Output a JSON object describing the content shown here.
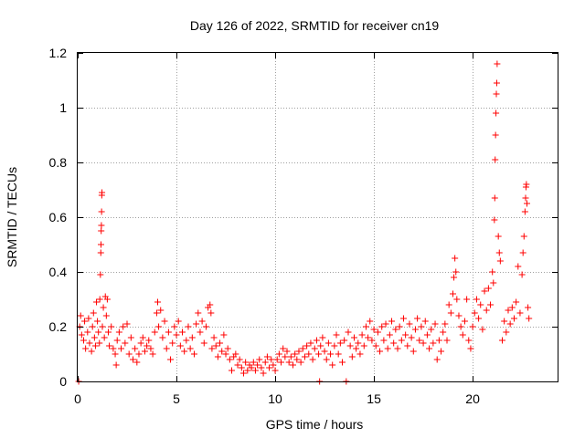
{
  "chart_data": {
    "type": "scatter",
    "title": "Day 126 of 2022, SRMTID for receiver cn19",
    "xlabel": "GPS time / hours",
    "ylabel": "SRMTID / TECUs",
    "xlim": [
      0,
      24.3
    ],
    "ylim": [
      0,
      1.2
    ],
    "xticks": [
      0,
      5,
      10,
      15,
      20
    ],
    "xtick_labels": [
      "0",
      "5",
      "10",
      "15",
      "20"
    ],
    "yticks": [
      0,
      0.2,
      0.4,
      0.6,
      0.8,
      1.0,
      1.2
    ],
    "ytick_labels": [
      "0",
      "0.2",
      "0.4",
      "0.6",
      "0.8",
      "1",
      "1.2"
    ],
    "grid": true,
    "marker": "+",
    "color": "#ff0000",
    "series": [
      {
        "name": "cn19",
        "points": [
          [
            0.05,
            0.0
          ],
          [
            0.1,
            0.2
          ],
          [
            0.15,
            0.24
          ],
          [
            0.2,
            0.17
          ],
          [
            0.3,
            0.15
          ],
          [
            0.35,
            0.22
          ],
          [
            0.4,
            0.12
          ],
          [
            0.5,
            0.18
          ],
          [
            0.55,
            0.23
          ],
          [
            0.6,
            0.14
          ],
          [
            0.7,
            0.11
          ],
          [
            0.75,
            0.2
          ],
          [
            0.8,
            0.25
          ],
          [
            0.85,
            0.16
          ],
          [
            0.9,
            0.13
          ],
          [
            0.95,
            0.29
          ],
          [
            1.0,
            0.22
          ],
          [
            1.05,
            0.18
          ],
          [
            1.1,
            0.14
          ],
          [
            1.12,
            0.3
          ],
          [
            1.15,
            0.39
          ],
          [
            1.17,
            0.47
          ],
          [
            1.18,
            0.5
          ],
          [
            1.19,
            0.55
          ],
          [
            1.2,
            0.57
          ],
          [
            1.21,
            0.62
          ],
          [
            1.22,
            0.68
          ],
          [
            1.23,
            0.69
          ],
          [
            1.25,
            0.2
          ],
          [
            1.3,
            0.27
          ],
          [
            1.35,
            0.16
          ],
          [
            1.4,
            0.31
          ],
          [
            1.45,
            0.24
          ],
          [
            1.5,
            0.3
          ],
          [
            1.55,
            0.18
          ],
          [
            1.6,
            0.13
          ],
          [
            1.7,
            0.2
          ],
          [
            1.8,
            0.12
          ],
          [
            1.9,
            0.1
          ],
          [
            1.95,
            0.06
          ],
          [
            2.0,
            0.15
          ],
          [
            2.1,
            0.18
          ],
          [
            2.2,
            0.12
          ],
          [
            2.3,
            0.2
          ],
          [
            2.4,
            0.14
          ],
          [
            2.5,
            0.21
          ],
          [
            2.6,
            0.1
          ],
          [
            2.7,
            0.16
          ],
          [
            2.8,
            0.08
          ],
          [
            2.9,
            0.12
          ],
          [
            3.0,
            0.07
          ],
          [
            3.1,
            0.1
          ],
          [
            3.2,
            0.14
          ],
          [
            3.3,
            0.16
          ],
          [
            3.4,
            0.11
          ],
          [
            3.5,
            0.13
          ],
          [
            3.6,
            0.15
          ],
          [
            3.7,
            0.12
          ],
          [
            3.8,
            0.1
          ],
          [
            3.9,
            0.18
          ],
          [
            4.0,
            0.25
          ],
          [
            4.05,
            0.29
          ],
          [
            4.1,
            0.2
          ],
          [
            4.2,
            0.26
          ],
          [
            4.3,
            0.16
          ],
          [
            4.4,
            0.22
          ],
          [
            4.5,
            0.12
          ],
          [
            4.6,
            0.18
          ],
          [
            4.7,
            0.08
          ],
          [
            4.8,
            0.14
          ],
          [
            4.9,
            0.2
          ],
          [
            5.0,
            0.17
          ],
          [
            5.1,
            0.22
          ],
          [
            5.2,
            0.13
          ],
          [
            5.3,
            0.18
          ],
          [
            5.4,
            0.11
          ],
          [
            5.5,
            0.15
          ],
          [
            5.6,
            0.2
          ],
          [
            5.7,
            0.12
          ],
          [
            5.8,
            0.16
          ],
          [
            5.9,
            0.1
          ],
          [
            6.0,
            0.21
          ],
          [
            6.1,
            0.25
          ],
          [
            6.2,
            0.18
          ],
          [
            6.3,
            0.22
          ],
          [
            6.4,
            0.14
          ],
          [
            6.5,
            0.2
          ],
          [
            6.6,
            0.27
          ],
          [
            6.7,
            0.28
          ],
          [
            6.75,
            0.25
          ],
          [
            6.8,
            0.12
          ],
          [
            6.9,
            0.16
          ],
          [
            7.0,
            0.13
          ],
          [
            7.1,
            0.09
          ],
          [
            7.2,
            0.14
          ],
          [
            7.3,
            0.11
          ],
          [
            7.4,
            0.17
          ],
          [
            7.5,
            0.1
          ],
          [
            7.6,
            0.12
          ],
          [
            7.7,
            0.08
          ],
          [
            7.8,
            0.04
          ],
          [
            7.9,
            0.09
          ],
          [
            8.0,
            0.1
          ],
          [
            8.1,
            0.06
          ],
          [
            8.2,
            0.08
          ],
          [
            8.3,
            0.05
          ],
          [
            8.4,
            0.03
          ],
          [
            8.5,
            0.07
          ],
          [
            8.6,
            0.04
          ],
          [
            8.7,
            0.06
          ],
          [
            8.8,
            0.05
          ],
          [
            8.9,
            0.07
          ],
          [
            9.0,
            0.04
          ],
          [
            9.1,
            0.06
          ],
          [
            9.2,
            0.08
          ],
          [
            9.3,
            0.05
          ],
          [
            9.4,
            0.03
          ],
          [
            9.5,
            0.07
          ],
          [
            9.6,
            0.09
          ],
          [
            9.7,
            0.05
          ],
          [
            9.8,
            0.08
          ],
          [
            9.9,
            0.06
          ],
          [
            10.0,
            0.04
          ],
          [
            10.1,
            0.08
          ],
          [
            10.2,
            0.1
          ],
          [
            10.3,
            0.07
          ],
          [
            10.4,
            0.12
          ],
          [
            10.5,
            0.09
          ],
          [
            10.6,
            0.11
          ],
          [
            10.7,
            0.07
          ],
          [
            10.8,
            0.09
          ],
          [
            10.9,
            0.06
          ],
          [
            11.0,
            0.1
          ],
          [
            11.1,
            0.08
          ],
          [
            11.2,
            0.11
          ],
          [
            11.3,
            0.07
          ],
          [
            11.4,
            0.12
          ],
          [
            11.5,
            0.09
          ],
          [
            11.6,
            0.13
          ],
          [
            11.7,
            0.1
          ],
          [
            11.8,
            0.14
          ],
          [
            11.9,
            0.08
          ],
          [
            12.0,
            0.12
          ],
          [
            12.1,
            0.15
          ],
          [
            12.2,
            0.1
          ],
          [
            12.25,
            0.0
          ],
          [
            12.3,
            0.13
          ],
          [
            12.4,
            0.16
          ],
          [
            12.5,
            0.11
          ],
          [
            12.6,
            0.08
          ],
          [
            12.7,
            0.14
          ],
          [
            12.8,
            0.1
          ],
          [
            12.9,
            0.06
          ],
          [
            13.0,
            0.13
          ],
          [
            13.1,
            0.17
          ],
          [
            13.2,
            0.1
          ],
          [
            13.3,
            0.14
          ],
          [
            13.4,
            0.07
          ],
          [
            13.5,
            0.15
          ],
          [
            13.6,
            0.0
          ],
          [
            13.7,
            0.18
          ],
          [
            13.8,
            0.13
          ],
          [
            13.9,
            0.09
          ],
          [
            14.0,
            0.16
          ],
          [
            14.1,
            0.12
          ],
          [
            14.2,
            0.14
          ],
          [
            14.3,
            0.1
          ],
          [
            14.4,
            0.17
          ],
          [
            14.5,
            0.13
          ],
          [
            14.6,
            0.2
          ],
          [
            14.7,
            0.16
          ],
          [
            14.8,
            0.22
          ],
          [
            14.9,
            0.15
          ],
          [
            15.0,
            0.19
          ],
          [
            15.1,
            0.13
          ],
          [
            15.2,
            0.18
          ],
          [
            15.3,
            0.11
          ],
          [
            15.4,
            0.2
          ],
          [
            15.5,
            0.15
          ],
          [
            15.6,
            0.21
          ],
          [
            15.7,
            0.12
          ],
          [
            15.8,
            0.17
          ],
          [
            15.9,
            0.22
          ],
          [
            16.0,
            0.14
          ],
          [
            16.1,
            0.19
          ],
          [
            16.2,
            0.12
          ],
          [
            16.3,
            0.2
          ],
          [
            16.4,
            0.15
          ],
          [
            16.5,
            0.23
          ],
          [
            16.6,
            0.17
          ],
          [
            16.7,
            0.13
          ],
          [
            16.8,
            0.21
          ],
          [
            16.9,
            0.16
          ],
          [
            17.0,
            0.11
          ],
          [
            17.1,
            0.19
          ],
          [
            17.2,
            0.23
          ],
          [
            17.3,
            0.15
          ],
          [
            17.4,
            0.2
          ],
          [
            17.5,
            0.14
          ],
          [
            17.6,
            0.22
          ],
          [
            17.7,
            0.17
          ],
          [
            17.8,
            0.12
          ],
          [
            17.9,
            0.19
          ],
          [
            18.0,
            0.14
          ],
          [
            18.1,
            0.21
          ],
          [
            18.2,
            0.08
          ],
          [
            18.3,
            0.15
          ],
          [
            18.4,
            0.11
          ],
          [
            18.5,
            0.18
          ],
          [
            18.6,
            0.21
          ],
          [
            18.7,
            0.15
          ],
          [
            18.8,
            0.28
          ],
          [
            18.9,
            0.25
          ],
          [
            19.0,
            0.32
          ],
          [
            19.05,
            0.38
          ],
          [
            19.1,
            0.45
          ],
          [
            19.15,
            0.4
          ],
          [
            19.2,
            0.3
          ],
          [
            19.3,
            0.24
          ],
          [
            19.4,
            0.2
          ],
          [
            19.5,
            0.17
          ],
          [
            19.6,
            0.22
          ],
          [
            19.7,
            0.3
          ],
          [
            19.8,
            0.15
          ],
          [
            19.9,
            0.12
          ],
          [
            20.0,
            0.2
          ],
          [
            20.1,
            0.25
          ],
          [
            20.2,
            0.3
          ],
          [
            20.3,
            0.23
          ],
          [
            20.4,
            0.28
          ],
          [
            20.5,
            0.19
          ],
          [
            20.6,
            0.33
          ],
          [
            20.7,
            0.26
          ],
          [
            20.8,
            0.34
          ],
          [
            20.9,
            0.28
          ],
          [
            21.0,
            0.4
          ],
          [
            21.05,
            0.36
          ],
          [
            21.1,
            0.59
          ],
          [
            21.12,
            0.67
          ],
          [
            21.14,
            0.81
          ],
          [
            21.16,
            0.9
          ],
          [
            21.18,
            0.98
          ],
          [
            21.2,
            1.05
          ],
          [
            21.22,
            1.09
          ],
          [
            21.24,
            1.16
          ],
          [
            21.3,
            0.53
          ],
          [
            21.35,
            0.47
          ],
          [
            21.4,
            0.44
          ],
          [
            21.5,
            0.15
          ],
          [
            21.6,
            0.22
          ],
          [
            21.7,
            0.18
          ],
          [
            21.8,
            0.26
          ],
          [
            21.9,
            0.21
          ],
          [
            22.0,
            0.27
          ],
          [
            22.1,
            0.23
          ],
          [
            22.2,
            0.29
          ],
          [
            22.3,
            0.42
          ],
          [
            22.4,
            0.25
          ],
          [
            22.5,
            0.39
          ],
          [
            22.55,
            0.47
          ],
          [
            22.6,
            0.53
          ],
          [
            22.65,
            0.62
          ],
          [
            22.68,
            0.67
          ],
          [
            22.7,
            0.71
          ],
          [
            22.72,
            0.72
          ],
          [
            22.75,
            0.65
          ],
          [
            22.8,
            0.27
          ],
          [
            22.85,
            0.23
          ]
        ]
      }
    ]
  }
}
